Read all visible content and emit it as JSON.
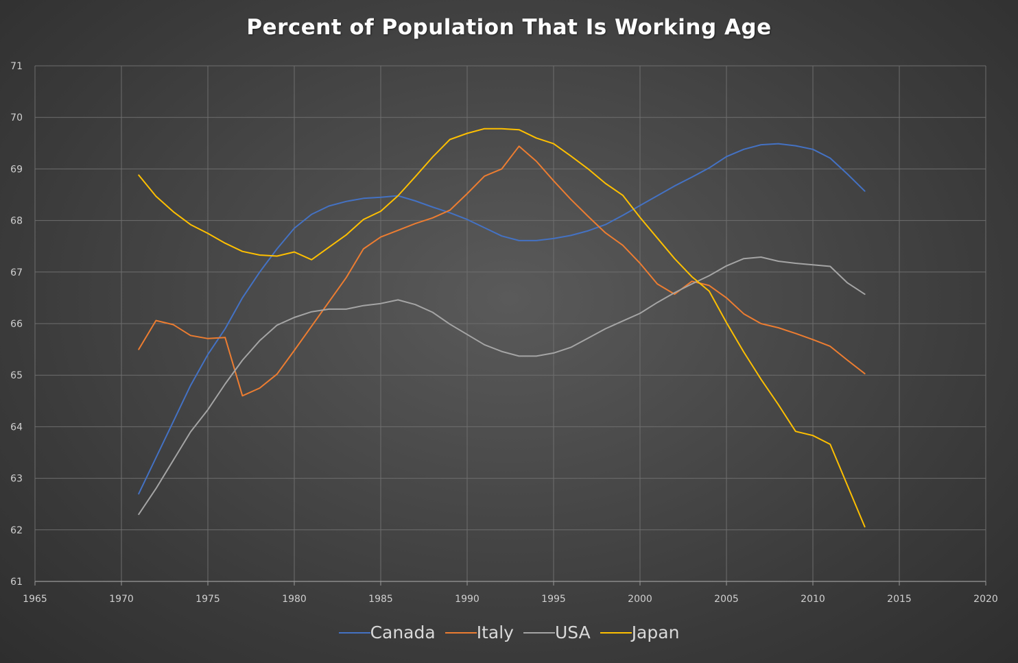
{
  "chart_data": {
    "type": "line",
    "title": "Percent of Population That Is Working Age",
    "xlabel": "",
    "ylabel": "",
    "xlim": [
      1965,
      2020
    ],
    "ylim": [
      61,
      71
    ],
    "x_ticks": [
      "1965",
      "1970",
      "1975",
      "1980",
      "1985",
      "1990",
      "1995",
      "2000",
      "2005",
      "2010",
      "2015",
      "2020"
    ],
    "y_ticks": [
      "61",
      "62",
      "63",
      "64",
      "65",
      "66",
      "67",
      "68",
      "69",
      "70",
      "71"
    ],
    "grid": true,
    "legend_position": "bottom",
    "x": [
      1971,
      1972,
      1973,
      1974,
      1975,
      1976,
      1977,
      1978,
      1979,
      1980,
      1981,
      1982,
      1983,
      1984,
      1985,
      1986,
      1987,
      1988,
      1989,
      1990,
      1991,
      1992,
      1993,
      1994,
      1995,
      1996,
      1997,
      1998,
      1999,
      2000,
      2001,
      2002,
      2003,
      2004,
      2005,
      2006,
      2007,
      2008,
      2009,
      2010,
      2011,
      2012,
      2013
    ],
    "series": [
      {
        "name": "Canada",
        "color": "#4472c4",
        "values": [
          62.7,
          63.4,
          64.1,
          64.8,
          65.4,
          65.9,
          66.5,
          67.0,
          67.45,
          67.85,
          68.12,
          68.28,
          68.37,
          68.43,
          68.45,
          68.48,
          68.38,
          68.26,
          68.15,
          68.02,
          67.86,
          67.7,
          67.61,
          67.61,
          67.65,
          67.71,
          67.8,
          67.92,
          68.1,
          68.29,
          68.48,
          68.67,
          68.84,
          69.02,
          69.24,
          69.38,
          69.47,
          69.49,
          69.45,
          69.38,
          69.21,
          68.9,
          68.57
        ]
      },
      {
        "name": "Italy",
        "color": "#ed7d31",
        "values": [
          65.5,
          66.06,
          65.98,
          65.77,
          65.71,
          65.73,
          64.6,
          64.75,
          65.02,
          65.48,
          65.95,
          66.42,
          66.89,
          67.45,
          67.68,
          67.81,
          67.94,
          68.05,
          68.2,
          68.52,
          68.86,
          69.0,
          69.44,
          69.15,
          68.77,
          68.41,
          68.08,
          67.76,
          67.52,
          67.17,
          66.77,
          66.57,
          66.82,
          66.74,
          66.5,
          66.19,
          66.0,
          65.92,
          65.81,
          65.69,
          65.56,
          65.29,
          65.03
        ]
      },
      {
        "name": "USA",
        "color": "#a5a5a5",
        "values": [
          62.3,
          62.8,
          63.35,
          63.9,
          64.33,
          64.83,
          65.29,
          65.67,
          65.97,
          66.12,
          66.23,
          66.28,
          66.28,
          66.35,
          66.39,
          66.46,
          66.37,
          66.22,
          65.99,
          65.79,
          65.59,
          65.46,
          65.37,
          65.37,
          65.43,
          65.54,
          65.72,
          65.9,
          66.05,
          66.2,
          66.41,
          66.6,
          66.77,
          66.93,
          67.12,
          67.26,
          67.29,
          67.21,
          67.17,
          67.14,
          67.11,
          66.79,
          66.57
        ]
      },
      {
        "name": "Japan",
        "color": "#ffc000",
        "values": [
          68.88,
          68.47,
          68.17,
          67.92,
          67.75,
          67.56,
          67.4,
          67.33,
          67.31,
          67.39,
          67.24,
          67.48,
          67.72,
          68.02,
          68.18,
          68.48,
          68.85,
          69.23,
          69.57,
          69.69,
          69.78,
          69.78,
          69.76,
          69.6,
          69.49,
          69.25,
          69.0,
          68.72,
          68.49,
          68.06,
          67.66,
          67.26,
          66.91,
          66.63,
          66.02,
          65.45,
          64.92,
          64.43,
          63.91,
          63.83,
          63.66,
          62.86,
          62.06
        ]
      }
    ]
  }
}
